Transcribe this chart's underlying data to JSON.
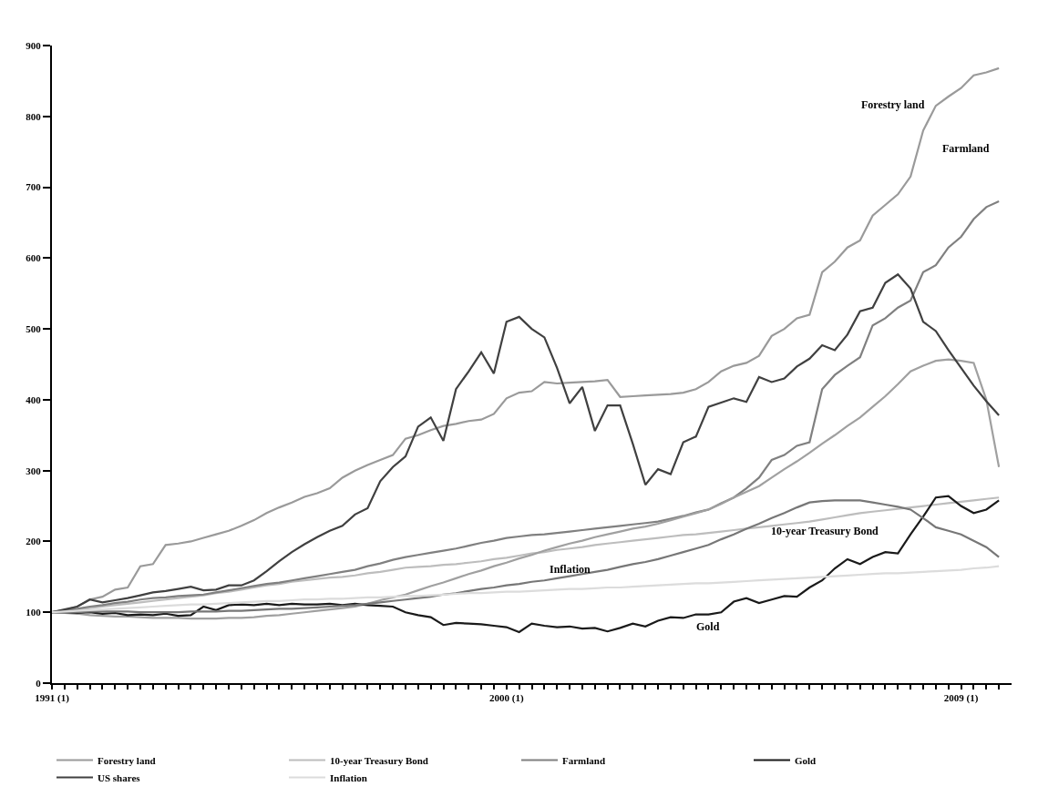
{
  "chart_data": {
    "type": "line",
    "ylim": [
      0,
      900
    ],
    "yticks": [
      0,
      100,
      200,
      300,
      400,
      500,
      600,
      700,
      800,
      900
    ],
    "categories": [
      "1991 (1)",
      null,
      null,
      null,
      null,
      null,
      null,
      null,
      null,
      null,
      null,
      null,
      null,
      null,
      null,
      null,
      null,
      null,
      null,
      null,
      null,
      null,
      null,
      null,
      null,
      null,
      null,
      null,
      null,
      null,
      null,
      null,
      null,
      null,
      null,
      null,
      "2000 (1)",
      null,
      null,
      null,
      null,
      null,
      null,
      null,
      null,
      null,
      null,
      null,
      null,
      null,
      null,
      null,
      null,
      null,
      null,
      null,
      null,
      null,
      null,
      null,
      null,
      null,
      null,
      null,
      null,
      null,
      null,
      null,
      null,
      null,
      null,
      null,
      "2009 (1)",
      null,
      null,
      null
    ],
    "grid": false,
    "legend": "bottom",
    "marker": "none",
    "line_style": "solid",
    "series": [
      {
        "name": "Forestry land",
        "color": "#9a9a9a",
        "values": [
          100,
          103,
          108,
          118,
          122,
          132,
          135,
          165,
          168,
          195,
          197,
          200,
          205,
          210,
          215,
          222,
          230,
          240,
          248,
          255,
          263,
          268,
          275,
          290,
          300,
          308,
          315,
          322,
          345,
          350,
          357,
          363,
          366,
          370,
          372,
          380,
          402,
          410,
          412,
          425,
          423,
          424,
          425,
          426,
          428,
          404,
          405,
          406,
          407,
          408,
          410,
          415,
          425,
          440,
          448,
          452,
          462,
          490,
          500,
          515,
          520,
          580,
          595,
          615,
          625,
          660,
          675,
          690,
          715,
          780,
          815,
          828,
          840,
          858,
          862,
          868
        ]
      },
      {
        "name": "10-year Treasury Bond",
        "color": "#bdbdbd",
        "values": [
          100,
          102,
          104,
          106,
          108,
          110,
          112,
          114,
          116,
          118,
          120,
          122,
          124,
          127,
          129,
          132,
          135,
          138,
          140,
          143,
          145,
          147,
          149,
          150,
          152,
          155,
          157,
          160,
          163,
          164,
          165,
          167,
          168,
          170,
          172,
          175,
          177,
          180,
          183,
          185,
          188,
          190,
          192,
          195,
          197,
          199,
          201,
          203,
          205,
          207,
          209,
          210,
          212,
          214,
          216,
          218,
          220,
          222,
          224,
          226,
          228,
          231,
          234,
          237,
          240,
          242,
          244,
          246,
          248,
          250,
          252,
          254,
          256,
          258,
          260,
          262
        ]
      },
      {
        "name": "Farmland",
        "color": "#808080",
        "values": [
          100,
          103,
          105,
          108,
          110,
          113,
          115,
          118,
          120,
          121,
          123,
          124,
          125,
          128,
          131,
          134,
          137,
          140,
          142,
          145,
          148,
          151,
          154,
          157,
          160,
          165,
          169,
          174,
          178,
          181,
          184,
          187,
          190,
          194,
          198,
          201,
          205,
          207,
          209,
          210,
          212,
          214,
          216,
          218,
          220,
          222,
          224,
          226,
          228,
          232,
          236,
          241,
          245,
          254,
          262,
          275,
          290,
          315,
          322,
          335,
          340,
          415,
          435,
          448,
          460,
          505,
          515,
          530,
          540,
          580,
          590,
          615,
          630,
          655,
          672,
          680
        ]
      },
      {
        "color": "#a0a0a0",
        "values": [
          100,
          99,
          98,
          96,
          95,
          94,
          94,
          93,
          92,
          92,
          92,
          91,
          91,
          91,
          92,
          92,
          93,
          95,
          96,
          98,
          100,
          102,
          104,
          106,
          108,
          112,
          117,
          121,
          125,
          131,
          137,
          142,
          148,
          154,
          159,
          165,
          170,
          176,
          181,
          187,
          192,
          197,
          201,
          206,
          210,
          214,
          218,
          221,
          225,
          230,
          235,
          240,
          245,
          253,
          262,
          270,
          278,
          290,
          302,
          313,
          325,
          338,
          350,
          363,
          375,
          390,
          405,
          422,
          440,
          448,
          455,
          457,
          455,
          452,
          400,
          305
        ]
      },
      {
        "name": "Gold",
        "color": "#1a1a1a",
        "values": [
          100,
          100,
          99,
          100,
          98,
          99,
          96,
          97,
          96,
          98,
          95,
          96,
          108,
          103,
          110,
          111,
          110,
          112,
          110,
          112,
          111,
          111,
          112,
          110,
          112,
          110,
          109,
          108,
          100,
          96,
          93,
          82,
          85,
          84,
          83,
          81,
          79,
          72,
          84,
          81,
          79,
          80,
          77,
          78,
          73,
          78,
          84,
          80,
          88,
          93,
          92,
          97,
          97,
          100,
          115,
          120,
          113,
          118,
          123,
          122,
          135,
          145,
          162,
          175,
          168,
          178,
          185,
          183,
          210,
          235,
          262,
          264,
          250,
          240,
          245,
          258
        ]
      },
      {
        "name": "US shares",
        "color": "#404040",
        "values": [
          100,
          104,
          108,
          118,
          114,
          117,
          120,
          124,
          128,
          130,
          133,
          136,
          131,
          132,
          138,
          138,
          145,
          158,
          172,
          185,
          196,
          206,
          215,
          222,
          238,
          247,
          285,
          305,
          320,
          362,
          375,
          342,
          415,
          440,
          467,
          437,
          510,
          517,
          500,
          488,
          445,
          395,
          418,
          356,
          392,
          392,
          338,
          280,
          302,
          295,
          340,
          348,
          390,
          396,
          402,
          397,
          432,
          425,
          430,
          447,
          458,
          477,
          470,
          492,
          525,
          530,
          565,
          577,
          557,
          510,
          497,
          470,
          445,
          420,
          398,
          378
        ]
      },
      {
        "color": "#777777",
        "values": [
          100,
          100,
          100,
          101,
          101,
          101,
          101,
          100,
          100,
          100,
          100,
          101,
          101,
          101,
          102,
          102,
          103,
          104,
          105,
          105,
          106,
          107,
          108,
          109,
          110,
          112,
          114,
          116,
          118,
          120,
          122,
          125,
          127,
          130,
          133,
          135,
          138,
          140,
          143,
          145,
          148,
          151,
          154,
          157,
          160,
          164,
          168,
          171,
          175,
          180,
          185,
          190,
          195,
          203,
          210,
          218,
          225,
          233,
          240,
          248,
          255,
          257,
          258,
          258,
          258,
          255,
          252,
          249,
          245,
          233,
          220,
          215,
          210,
          201,
          192,
          178
        ]
      },
      {
        "name": "Inflation",
        "color": "#dcdcdc",
        "values": [
          100,
          101,
          102,
          103,
          104,
          105,
          106,
          107,
          108,
          109,
          110,
          111,
          111,
          112,
          113,
          114,
          115,
          116,
          116,
          117,
          118,
          118,
          119,
          119,
          120,
          121,
          121,
          122,
          123,
          123,
          124,
          125,
          126,
          127,
          127,
          128,
          129,
          129,
          130,
          131,
          132,
          133,
          133,
          134,
          135,
          135,
          136,
          137,
          138,
          139,
          140,
          141,
          141,
          142,
          143,
          144,
          145,
          146,
          147,
          148,
          149,
          150,
          151,
          152,
          153,
          154,
          155,
          155,
          156,
          157,
          158,
          159,
          160,
          162,
          163,
          165
        ]
      }
    ],
    "annotations": [
      "Forestry land",
      "Farmland",
      "10-year Treasury Bond",
      "Inflation",
      "Gold"
    ]
  }
}
